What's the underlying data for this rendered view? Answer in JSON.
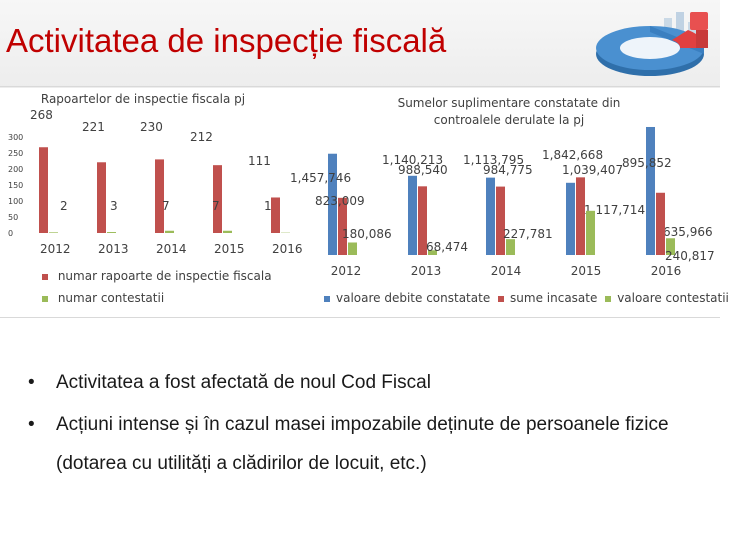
{
  "slide": {
    "title": "Activitatea de inspecție fiscală",
    "bullets": [
      {
        "text": "Activitatea a fost afectată de noul Cod Fiscal"
      },
      {
        "text": "Acțiuni intense și în cazul masei impozabile deținute de persoanele fizice",
        "cont": "(dotarea cu utilități a clădirilor de locuit, etc.)"
      }
    ],
    "bullet_char": "•"
  },
  "colors": {
    "title": "#c00000",
    "blue": "#4f81bd",
    "red": "#c0504d",
    "green": "#9bbb59"
  },
  "chart_data": [
    {
      "type": "bar",
      "title": "Rapoartelor de inspectie fiscala pj",
      "categories": [
        "2012",
        "2013",
        "2014",
        "2015",
        "2016"
      ],
      "series": [
        {
          "name": "numar rapoarte de inspectie fiscala",
          "values": [
            268,
            221,
            230,
            212,
            111
          ],
          "labels": [
            "268",
            "221",
            "230",
            "212",
            "111"
          ],
          "color": "#c0504d"
        },
        {
          "name": "numar contestatii",
          "values": [
            2,
            3,
            7,
            7,
            1
          ],
          "labels": [
            "2",
            "3",
            "7",
            "7",
            "1"
          ],
          "color": "#9bbb59"
        }
      ],
      "ylim": [
        0,
        300
      ],
      "yticks": [
        "0",
        "50",
        "100",
        "150",
        "200",
        "250",
        "300"
      ],
      "legend": "bottom-left"
    },
    {
      "type": "bar",
      "title": "Sumelor suplimentare constatate din controalele derulate la pj",
      "categories": [
        "2012",
        "2013",
        "2014",
        "2015",
        "2016"
      ],
      "series": [
        {
          "name": "valoare debite constatate",
          "values": [
            1457746,
            1140213,
            1113795,
            1039407,
            1842668
          ],
          "labels": [
            "1,457,746",
            "1,140,213",
            "1,113,795",
            "1,039,407",
            "1,842,668"
          ],
          "color": "#4f81bd"
        },
        {
          "name": "sume incasate",
          "values": [
            823009,
            988540,
            984775,
            1117714,
            895852
          ],
          "labels": [
            "823,009",
            "988,540",
            "984,775",
            "1,117,714",
            "895,852"
          ],
          "color": "#c0504d"
        },
        {
          "name": "valoare contestatii",
          "values": [
            180086,
            68474,
            227781,
            635966,
            240817
          ],
          "labels": [
            "180,086",
            "68,474",
            "227,781",
            "635,966",
            "240,817"
          ],
          "color": "#9bbb59"
        }
      ],
      "ylim": [
        0,
        1900000
      ],
      "legend": "bottom"
    }
  ]
}
